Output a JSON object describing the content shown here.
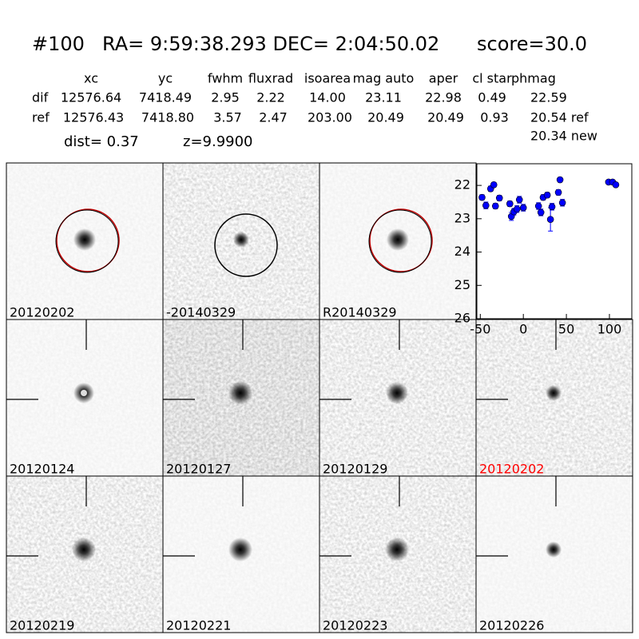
{
  "header": {
    "id": "#100",
    "coords": "RA= 9:59:38.293 DEC= 2:04:50.02",
    "score": "score=30.0"
  },
  "table": {
    "columns": [
      "xc",
      "yc",
      "fwhm",
      "fluxrad",
      "isoarea",
      "mag auto",
      "aper",
      "cl star",
      "phmag"
    ],
    "rows": [
      {
        "label": "dif",
        "cells": [
          "12576.64",
          "7418.49",
          "2.95",
          "2.22",
          "14.00",
          "23.11",
          "22.98",
          "0.49",
          "22.59"
        ]
      },
      {
        "label": "ref",
        "cells": [
          "12576.43",
          "7418.80",
          "3.57",
          "2.47",
          "203.00",
          "20.49",
          "20.49",
          "0.93",
          "20.54 ref"
        ]
      }
    ],
    "phmag_new": "20.34 new"
  },
  "dist": "dist=  0.37",
  "z": "z=9.9900",
  "stamps": [
    {
      "label": "20120202"
    },
    {
      "label": "-20140329"
    },
    {
      "label": "R20140329"
    },
    {
      "label": "20120124"
    },
    {
      "label": "20120127"
    },
    {
      "label": "20120129"
    },
    {
      "label": "20120202",
      "color": "#ff0000"
    },
    {
      "label": "20120219"
    },
    {
      "label": "20120221"
    },
    {
      "label": "20120223"
    },
    {
      "label": "20120226"
    }
  ],
  "chart_data": {
    "type": "scatter",
    "xlim": [
      -54,
      126
    ],
    "ylim": [
      21.35,
      26
    ],
    "invert_y": true,
    "xticks": [
      -50,
      0,
      50,
      100
    ],
    "yticks": [
      22,
      23,
      24,
      25,
      26
    ],
    "series": [
      {
        "color": "#0000ff",
        "x": [
          -48,
          -43.5,
          -38,
          -34.3,
          -32.4,
          -27.8,
          -15.7,
          -13.9,
          -11,
          -7.4,
          -4.6,
          0,
          17.6,
          20.4,
          23,
          27.8,
          31.5,
          33.3,
          40.7,
          42.6,
          45.4,
          99,
          103.7,
          107.4
        ],
        "values": [
          22.36,
          22.6,
          22.1,
          21.98,
          22.62,
          22.38,
          22.55,
          22.93,
          22.79,
          22.71,
          22.43,
          22.67,
          22.62,
          22.81,
          22.36,
          22.29,
          23.02,
          22.64,
          22.21,
          21.83,
          22.52,
          21.9,
          21.9,
          21.98
        ],
        "errors": [
          0.08,
          0.1,
          0.08,
          0.07,
          0.08,
          0.08,
          0.08,
          0.12,
          0.1,
          0.1,
          0.1,
          0.1,
          0.1,
          0.1,
          0.08,
          0.08,
          0.35,
          0.1,
          0.08,
          0.07,
          0.1,
          0.06,
          0.06,
          0.06
        ]
      }
    ]
  }
}
